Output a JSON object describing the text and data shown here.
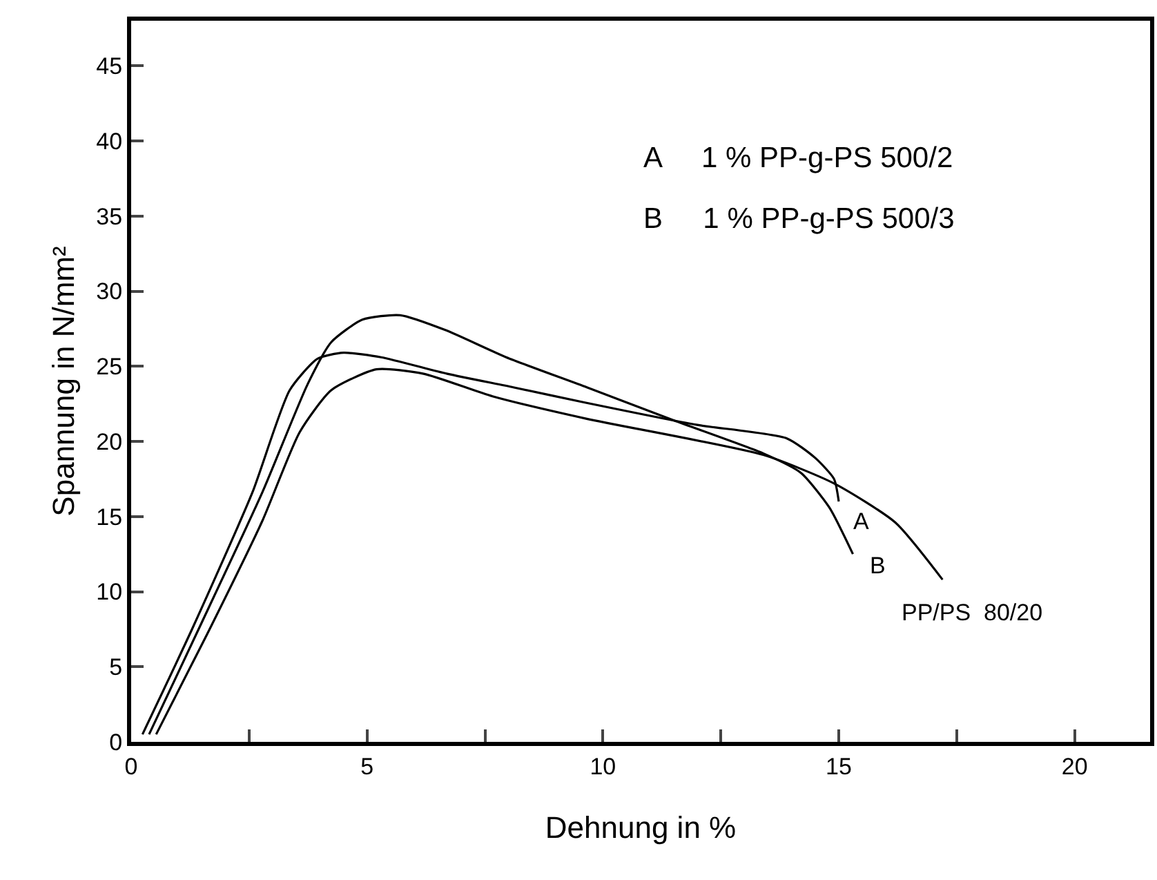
{
  "chart_data": {
    "type": "line",
    "xlabel": "Dehnung in %",
    "ylabel": "Spannung in N/mm²",
    "xlim": [
      0,
      21.6
    ],
    "ylim": [
      0,
      48
    ],
    "xticks": [
      0,
      {
        "value": 2.5,
        "label": null
      },
      5,
      {
        "value": 7.5,
        "label": null
      },
      10,
      {
        "value": 12.5,
        "label": null
      },
      15,
      {
        "value": 17.5,
        "label": null
      },
      20
    ],
    "yticks": [
      0,
      5,
      10,
      15,
      20,
      25,
      30,
      35,
      40,
      45
    ],
    "grid": false,
    "legend": false,
    "marker": "none",
    "line_style": "solid",
    "annotations": [
      "A     1 % PP-g-PS 500/2",
      "B     1 % PP-g-PS 500/3"
    ],
    "series": [
      {
        "name": "A",
        "color": "#000000",
        "x": [
          0.24,
          1.32,
          2.57,
          3.36,
          3.95,
          4.5,
          5.3,
          6.7,
          8.1,
          9.6,
          12.0,
          13.9,
          14.5,
          14.9,
          15.0
        ],
        "values": [
          0.5,
          7.7,
          16.6,
          23.4,
          25.5,
          25.9,
          25.6,
          24.5,
          23.6,
          22.6,
          21.1,
          20.2,
          18.9,
          17.5,
          16.0
        ]
      },
      {
        "name": "B",
        "color": "#000000",
        "x": [
          0.38,
          1.46,
          2.78,
          3.74,
          4.24,
          4.9,
          5.7,
          6.67,
          7.95,
          9.66,
          11.5,
          13.4,
          14.2,
          14.8,
          15.3
        ],
        "values": [
          0.5,
          7.7,
          16.6,
          23.8,
          26.6,
          28.1,
          28.4,
          27.4,
          25.6,
          23.6,
          21.4,
          19.2,
          17.9,
          15.6,
          12.5
        ]
      },
      {
        "name": "PP/PS  80/20",
        "color": "#000000",
        "x": [
          0.53,
          1.6,
          2.78,
          3.57,
          4.24,
          5.2,
          6.2,
          7.66,
          9.66,
          13.4,
          14.9,
          16.2,
          17.2
        ],
        "values": [
          0.5,
          7.1,
          14.7,
          20.6,
          23.4,
          24.8,
          24.5,
          23.0,
          21.5,
          19.1,
          17.2,
          14.6,
          10.8
        ]
      }
    ]
  }
}
